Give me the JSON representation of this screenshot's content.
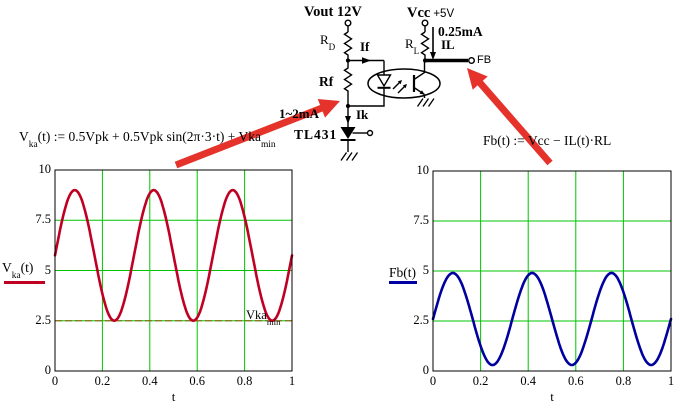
{
  "circuit": {
    "vout_label": "Vout 12V",
    "vcc_label": "Vcc",
    "vcc_value": "+5V",
    "rd_base": "R",
    "rd_sub": "D",
    "rl_base": "R",
    "rl_sub": "L",
    "if_label": "If",
    "il_current": "0.25mA",
    "il_label": "IL",
    "fb_label": "FB",
    "rf_label": "Rf",
    "bias_current": "1~2mA",
    "ik_label": "Ik",
    "tl431_label": "TL431"
  },
  "formulas": {
    "left_base": "V",
    "left_sub": "ka",
    "left_body": "(t) := 0.5Vpk + 0.5Vpk sin(2π·3·t) + Vka",
    "left_sub2": "min",
    "right": "Fb(t) := Vcc − IL(t)·RL"
  },
  "annotation_arrows": {
    "color": "#e5332c",
    "count": 2
  },
  "chart_data": [
    {
      "type": "line",
      "legend": {
        "base": "V",
        "sub": "ka",
        "rest": "(t)"
      },
      "xlabel": "t",
      "xlim": [
        0,
        1
      ],
      "ylim": [
        0,
        10
      ],
      "xticks": [
        0,
        0.2,
        0.4,
        0.6,
        0.8,
        1
      ],
      "yticks": [
        0,
        2.5,
        5,
        7.5,
        10
      ],
      "xtick_labels": [
        "0",
        "0.2",
        "0.4",
        "0.6",
        "0.8",
        "1"
      ],
      "ytick_labels": [
        "0",
        "2.5",
        "5",
        "7.5",
        "10"
      ],
      "grid": true,
      "grid_color": "#00c400",
      "trace_color": "#c00022",
      "function": "Vka(t) = 0.5·Vpk + 0.5·Vpk·sin(2π·3·t) + Vka_min, Vpk = 6.5, Vka_min = 2.5",
      "params": {
        "offset": 5.75,
        "amplitude": 3.25,
        "cycles": 3
      },
      "x": [
        0,
        0.042,
        0.083,
        0.125,
        0.167,
        0.208,
        0.25,
        0.292,
        0.333,
        0.375,
        0.417,
        0.458,
        0.5,
        0.542,
        0.583,
        0.625,
        0.667,
        0.708,
        0.75,
        0.792,
        0.833,
        0.875,
        0.917,
        0.958,
        1
      ],
      "values": [
        5.75,
        8.05,
        9,
        8.05,
        5.75,
        3.45,
        2.5,
        3.45,
        5.75,
        8.05,
        9,
        8.05,
        5.75,
        3.45,
        2.5,
        3.45,
        5.75,
        8.05,
        9,
        8.05,
        5.75,
        3.45,
        2.5,
        3.45,
        5.75
      ],
      "marker_line": {
        "value": 2.5,
        "color": "#8a6d1a",
        "style": "dashed",
        "label_base": "Vka",
        "label_sub": "min"
      }
    },
    {
      "type": "line",
      "legend": {
        "base": "Fb(t)",
        "sub": "",
        "rest": ""
      },
      "xlabel": "t",
      "xlim": [
        0,
        1
      ],
      "ylim": [
        0,
        10
      ],
      "xticks": [
        0,
        0.2,
        0.4,
        0.6,
        0.8,
        1
      ],
      "yticks": [
        0,
        2.5,
        5,
        7.5,
        10
      ],
      "xtick_labels": [
        "0",
        "0.2",
        "0.4",
        "0.6",
        "0.8",
        "1"
      ],
      "ytick_labels": [
        "0",
        "2.5",
        "5",
        "7.5",
        "10"
      ],
      "grid": true,
      "grid_color": "#00c400",
      "trace_color": "#0000a0",
      "function": "Fb(t) = Vcc − IL(t)·RL ≈ 2.6 + 2.3·sin(2π·3·t)",
      "params": {
        "offset": 2.6,
        "amplitude": 2.3,
        "cycles": 3
      },
      "x": [
        0,
        0.042,
        0.083,
        0.125,
        0.167,
        0.208,
        0.25,
        0.292,
        0.333,
        0.375,
        0.417,
        0.458,
        0.5,
        0.542,
        0.583,
        0.625,
        0.667,
        0.708,
        0.75,
        0.792,
        0.833,
        0.875,
        0.917,
        0.958,
        1
      ],
      "values": [
        2.6,
        4.23,
        4.9,
        4.23,
        2.6,
        0.97,
        0.3,
        0.97,
        2.6,
        4.23,
        4.9,
        4.23,
        2.6,
        0.97,
        0.3,
        0.97,
        2.6,
        4.23,
        4.9,
        4.23,
        2.6,
        0.97,
        0.3,
        0.97,
        2.6
      ],
      "marker_line": null
    }
  ]
}
